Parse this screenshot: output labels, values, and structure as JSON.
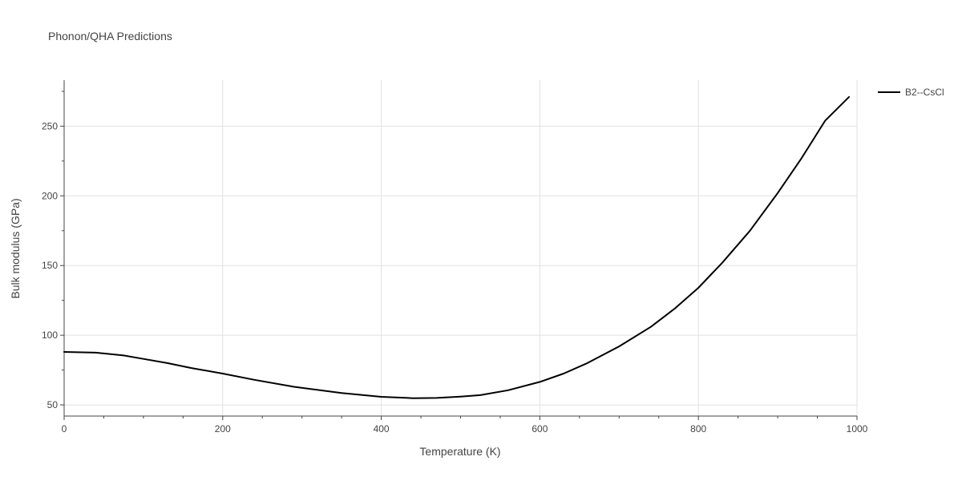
{
  "chart_data": {
    "type": "line",
    "title": "Phonon/QHA Predictions",
    "xlabel": "Temperature (K)",
    "ylabel": "Bulk modulus (GPa)",
    "xlim": [
      0,
      1000
    ],
    "ylim": [
      42,
      283
    ],
    "x_ticks": [
      0,
      200,
      400,
      600,
      800,
      1000
    ],
    "y_ticks": [
      50,
      100,
      150,
      200,
      250
    ],
    "x_minor_ticks": [
      50,
      100,
      150,
      250,
      300,
      350,
      450,
      500,
      550,
      650,
      700,
      750,
      850,
      900,
      950
    ],
    "y_minor_ticks": [
      75,
      125,
      175,
      225,
      275
    ],
    "grid": true,
    "legend_position": "top-right",
    "series": [
      {
        "name": "B2--CsCl",
        "color": "#000000",
        "x": [
          0,
          40,
          75,
          100,
          130,
          160,
          200,
          240,
          290,
          350,
          400,
          440,
          470,
          500,
          525,
          560,
          600,
          630,
          660,
          700,
          740,
          770,
          800,
          830,
          865,
          900,
          930,
          960,
          990
        ],
        "y": [
          88,
          87.5,
          85.5,
          83,
          80,
          76.5,
          72.5,
          68,
          63,
          58.5,
          55.8,
          54.8,
          55,
          56,
          57,
          60.5,
          66.5,
          72.5,
          80,
          92,
          106,
          119,
          134,
          152,
          175,
          202,
          227,
          254,
          271
        ]
      }
    ]
  }
}
